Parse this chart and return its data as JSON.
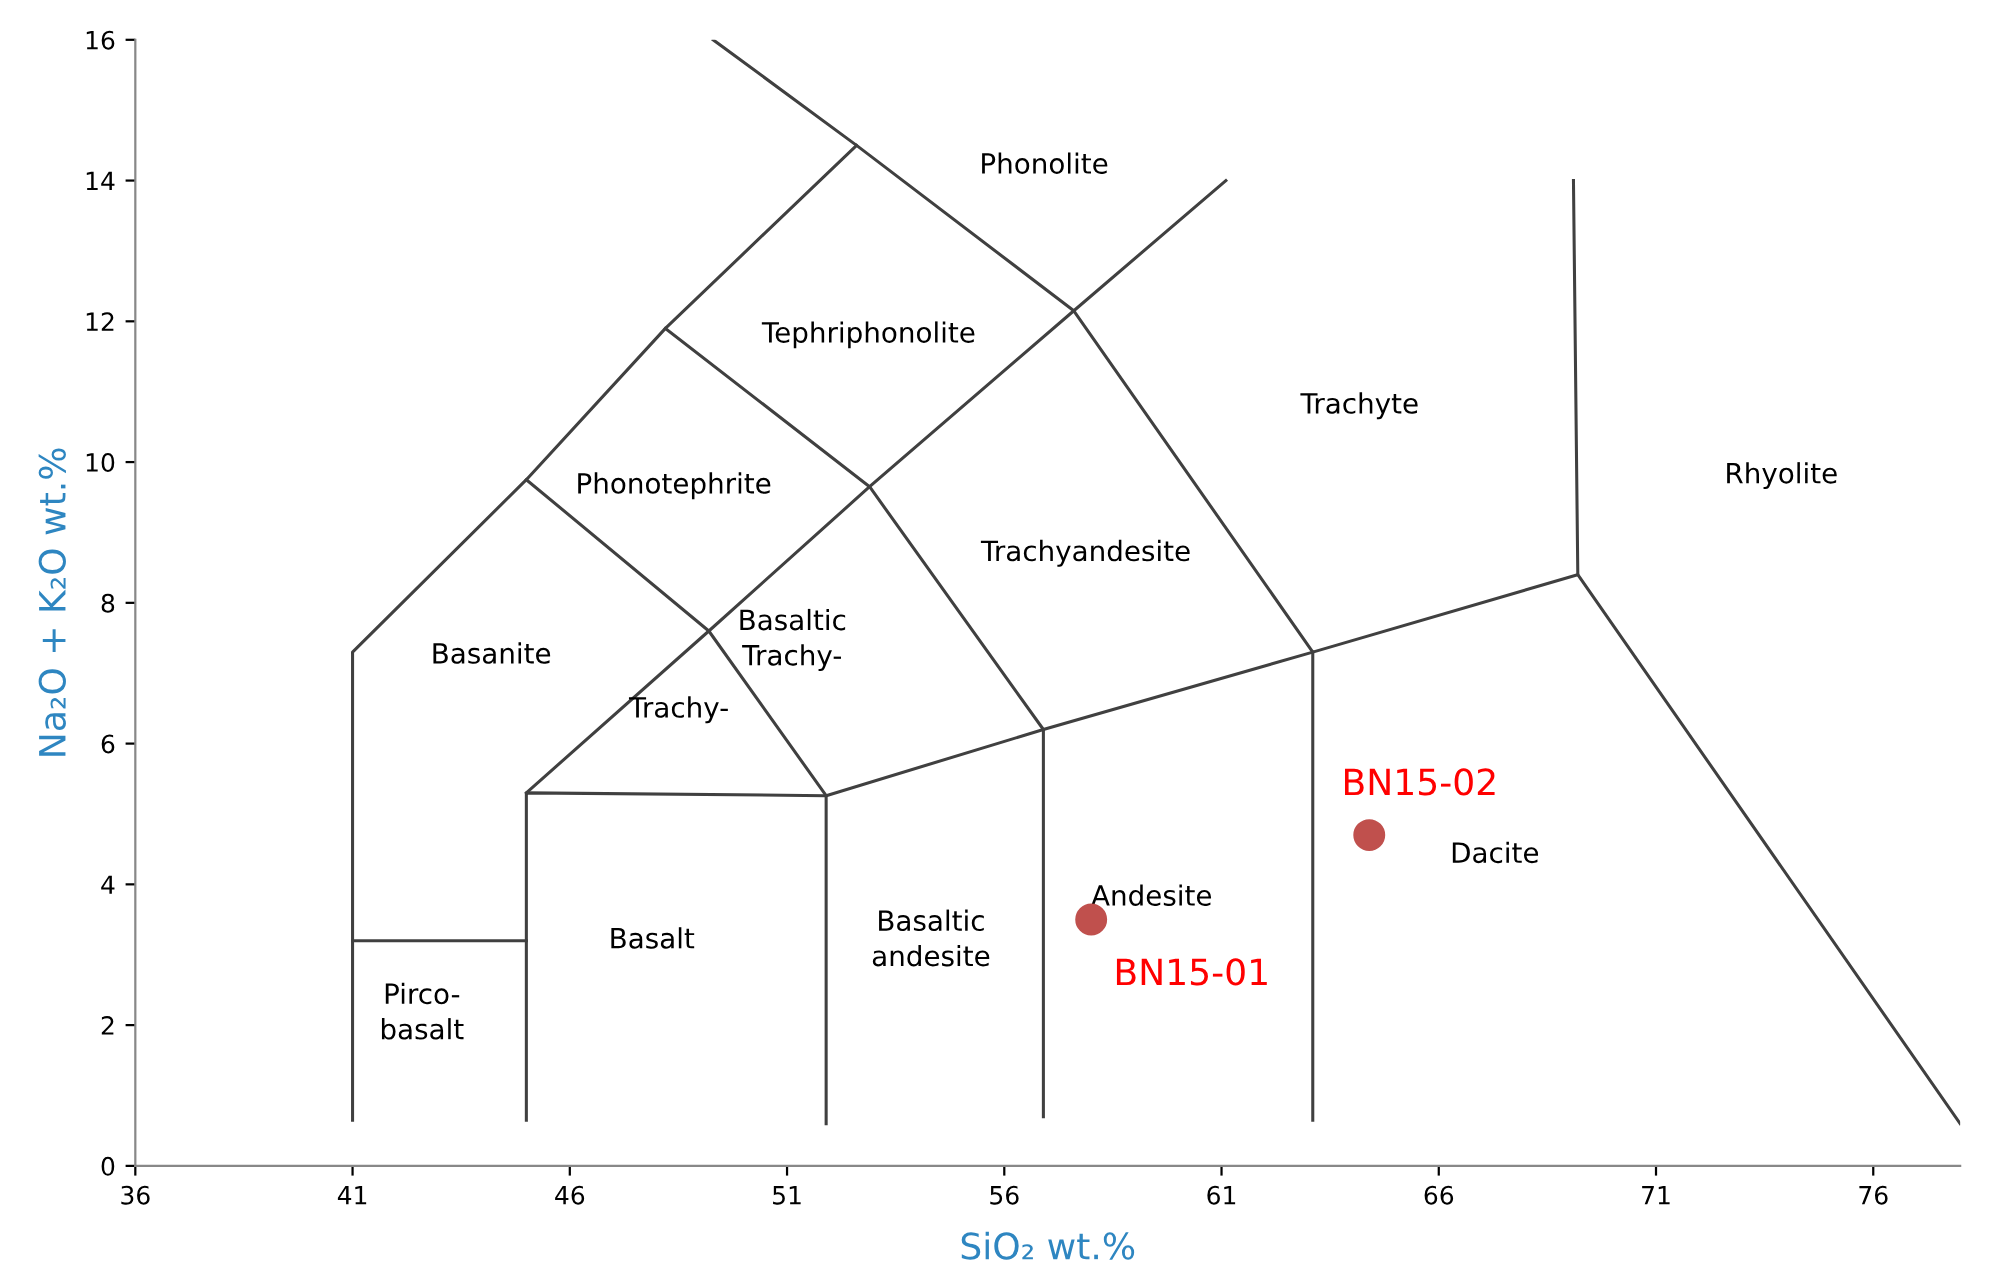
{
  "chart_data": {
    "type": "scatter",
    "xlabel": "SiO₂ wt.%",
    "ylabel": "Na₂O + K₂O wt.%",
    "xlim": [
      36,
      78
    ],
    "ylim": [
      0,
      16
    ],
    "xticks": [
      36,
      41,
      46,
      51,
      56,
      61,
      66,
      71,
      76
    ],
    "yticks": [
      0,
      2,
      4,
      6,
      8,
      10,
      12,
      14,
      16
    ],
    "grid": false,
    "legend": false,
    "series": [
      {
        "type": "line",
        "color": "#404040",
        "x": [
          41,
          41,
          45,
          48.2,
          52.6
        ],
        "values": [
          0.65,
          7.3,
          9.75,
          11.9,
          14.5
        ]
      },
      {
        "type": "line",
        "color": "#404040",
        "x": [
          49.3,
          52.6,
          57.6,
          63.1
        ],
        "values": [
          16,
          14.5,
          12.15,
          7.3
        ]
      },
      {
        "type": "line",
        "color": "#404040",
        "x": [
          41,
          45
        ],
        "values": [
          3.2,
          3.2
        ]
      },
      {
        "type": "line",
        "color": "#404040",
        "x": [
          45,
          45,
          51.9,
          56.9,
          63.1,
          69.2
        ],
        "values": [
          0.65,
          5.3,
          5.26,
          6.2,
          7.3,
          8.4
        ]
      },
      {
        "type": "line",
        "color": "#404040",
        "x": [
          51.9,
          51.9
        ],
        "values": [
          5.26,
          0.6
        ]
      },
      {
        "type": "line",
        "color": "#404040",
        "x": [
          56.9,
          56.9
        ],
        "values": [
          6.2,
          0.7
        ]
      },
      {
        "type": "line",
        "color": "#404040",
        "x": [
          63.1,
          63.1
        ],
        "values": [
          7.3,
          0.65
        ]
      },
      {
        "type": "line",
        "color": "#404040",
        "x": [
          69.1,
          69.2,
          78
        ],
        "values": [
          14,
          8.4,
          0.6
        ]
      },
      {
        "type": "line",
        "color": "#404040",
        "x": [
          45,
          49.2,
          52.9,
          57.6,
          61.1
        ],
        "values": [
          5.3,
          7.6,
          9.65,
          12.15,
          14
        ]
      },
      {
        "type": "line",
        "color": "#404040",
        "x": [
          45,
          49.2,
          51.9
        ],
        "values": [
          9.75,
          7.6,
          5.26
        ]
      },
      {
        "type": "line",
        "color": "#404040",
        "x": [
          48.2,
          52.9,
          56.9
        ],
        "values": [
          11.9,
          9.65,
          6.2
        ]
      },
      {
        "name": "BN15-01",
        "color": "#c0504d",
        "marker": "circle",
        "x": [
          58
        ],
        "values": [
          3.5
        ]
      },
      {
        "name": "BN15-02",
        "color": "#c0504d",
        "marker": "circle",
        "x": [
          64.4
        ],
        "values": [
          4.7
        ]
      }
    ],
    "annotations": [
      "Phonolite",
      "Tephriphonolite",
      "Trachyte",
      "Rhyolite",
      "Phonotephrite",
      "Trachyandesite",
      "Basanite",
      "Basaltic\nTrachy-",
      "Trachy-",
      "Andesite",
      "Dacite",
      "Basalt",
      "Basaltic\nandesite",
      "Pirco-\nbasalt"
    ]
  }
}
